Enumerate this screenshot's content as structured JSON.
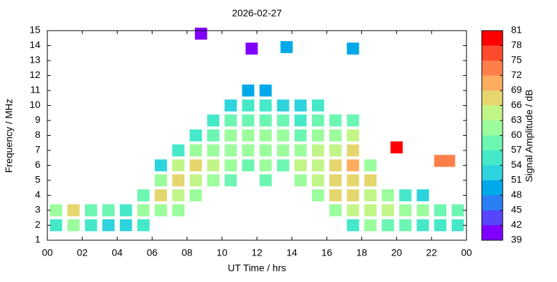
{
  "chart_data": {
    "type": "scatter",
    "title": "2026-02-27",
    "xlabel": "UT Time / hrs",
    "ylabel": "Frequency / MHz",
    "x": [
      0.5,
      0.5,
      1.5,
      1.5,
      2.5,
      2.5,
      3.5,
      3.5,
      4.5,
      4.5,
      5.5,
      5.5,
      5.5,
      6.5,
      6.5,
      6.5,
      6.5,
      7.5,
      7.5,
      7.5,
      7.5,
      7.5,
      8.5,
      8.5,
      8.5,
      8.5,
      8.5,
      9.5,
      9.5,
      9.5,
      9.5,
      9.5,
      10.5,
      10.5,
      10.5,
      10.5,
      10.5,
      10.5,
      11.5,
      11.5,
      11.5,
      11.5,
      11.5,
      11.5,
      12.5,
      12.5,
      12.5,
      12.5,
      12.5,
      12.5,
      12.5,
      13.5,
      13.5,
      13.5,
      13.5,
      13.5,
      14.5,
      14.5,
      14.5,
      14.5,
      14.5,
      14.5,
      15.5,
      15.5,
      15.5,
      15.5,
      15.5,
      15.5,
      15.5,
      16.5,
      16.5,
      16.5,
      16.5,
      16.5,
      16.5,
      16.5,
      17.5,
      17.5,
      17.5,
      17.5,
      17.5,
      17.5,
      17.5,
      17.5,
      18.5,
      18.5,
      18.5,
      18.5,
      18.5,
      19.5,
      19.5,
      19.5,
      20.5,
      20.5,
      20.5,
      21.5,
      21.5,
      21.5,
      22.5,
      22.5,
      23.5,
      23.5,
      8.8,
      11.7,
      13.7,
      17.5,
      20,
      22.5,
      23
    ],
    "y": [
      2,
      3,
      2,
      3,
      2,
      3,
      2,
      3,
      2,
      3,
      2,
      3,
      4,
      3,
      4,
      5,
      6,
      3,
      4,
      5,
      6,
      7,
      4,
      5,
      6,
      7,
      8,
      5,
      6,
      7,
      8,
      9,
      5,
      6,
      7,
      8,
      9,
      10,
      6,
      7,
      8,
      9,
      10,
      11,
      5,
      6,
      7,
      8,
      9,
      10,
      11,
      6,
      7,
      8,
      9,
      10,
      5,
      6,
      7,
      8,
      9,
      10,
      4,
      5,
      6,
      7,
      8,
      9,
      10,
      3,
      4,
      5,
      6,
      7,
      8,
      9,
      2,
      3,
      4,
      5,
      6,
      7,
      8,
      9,
      2,
      3,
      4,
      5,
      6,
      2,
      3,
      4,
      2,
      3,
      4,
      2,
      3,
      4,
      2,
      3,
      2,
      3,
      14.8,
      13.8,
      13.9,
      13.8,
      7.2,
      6.3,
      6.3
    ],
    "values": [
      55,
      60,
      62,
      66,
      54,
      58,
      52,
      57,
      53,
      56,
      55,
      60,
      58,
      62,
      66,
      60,
      52,
      60,
      65,
      66,
      63,
      56,
      62,
      64,
      66,
      60,
      55,
      60,
      63,
      62,
      58,
      54,
      58,
      60,
      62,
      60,
      57,
      52,
      58,
      60,
      61,
      58,
      55,
      50,
      58,
      60,
      62,
      60,
      57,
      54,
      50,
      59,
      62,
      60,
      58,
      53,
      60,
      63,
      62,
      59,
      56,
      53,
      62,
      64,
      65,
      63,
      60,
      57,
      54,
      62,
      66,
      67,
      66,
      64,
      62,
      58,
      56,
      63,
      66,
      67,
      69,
      68,
      64,
      58,
      60,
      64,
      65,
      66,
      62,
      58,
      63,
      60,
      57,
      62,
      55,
      56,
      60,
      52,
      55,
      59,
      54,
      57,
      41,
      40,
      50,
      48,
      78,
      72,
      74
    ],
    "xlim": [
      0,
      24
    ],
    "ylim": [
      1,
      15
    ],
    "xticks": [
      {
        "value": 0,
        "label": "00"
      },
      {
        "value": 2,
        "label": "02"
      },
      {
        "value": 4,
        "label": "04"
      },
      {
        "value": 6,
        "label": "06"
      },
      {
        "value": 8,
        "label": "08"
      },
      10,
      12,
      14,
      16,
      18,
      20,
      22,
      {
        "value": 24,
        "label": "00"
      }
    ],
    "yticks": [
      1,
      2,
      3,
      4,
      5,
      6,
      7,
      8,
      9,
      10,
      11,
      12,
      13,
      14,
      15
    ],
    "colorbar": {
      "label": "Signal Amplitude / dB",
      "lim": [
        39,
        81
      ],
      "ticks": [
        39,
        42,
        45,
        48,
        51,
        54,
        57,
        60,
        63,
        66,
        69,
        72,
        75,
        78,
        81
      ],
      "colors": [
        "#8000ff",
        "#5546fc",
        "#2b7ff5",
        "#02a9ea",
        "#2dd4dd",
        "#45e9c9",
        "#6cf6b2",
        "#9bfd9c",
        "#c2f587",
        "#e5d66e",
        "#fdad60",
        "#ff7f4a",
        "#ff4a2e",
        "#ff0000"
      ]
    }
  }
}
